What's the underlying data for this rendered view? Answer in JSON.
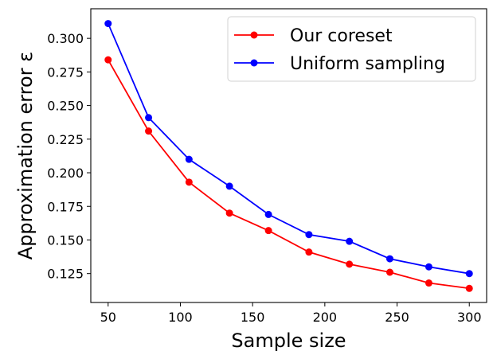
{
  "chart_data": {
    "type": "line",
    "title": "",
    "xlabel": "Sample size",
    "ylabel": "Approximation error ε",
    "x": [
      50,
      78,
      106,
      134,
      161,
      189,
      217,
      245,
      272,
      300
    ],
    "xlim": [
      38,
      312
    ],
    "ylim": [
      0.1035,
      0.322
    ],
    "xticks": [
      {
        "value": 50,
        "label": "50"
      },
      {
        "value": 100,
        "label": "100"
      },
      {
        "value": 150,
        "label": "150"
      },
      {
        "value": 200,
        "label": "200"
      },
      {
        "value": 250,
        "label": "250"
      },
      {
        "value": 300,
        "label": "300"
      }
    ],
    "yticks": [
      {
        "value": 0.125,
        "label": "0.125"
      },
      {
        "value": 0.15,
        "label": "0.150"
      },
      {
        "value": 0.175,
        "label": "0.175"
      },
      {
        "value": 0.2,
        "label": "0.200"
      },
      {
        "value": 0.225,
        "label": "0.225"
      },
      {
        "value": 0.25,
        "label": "0.250"
      },
      {
        "value": 0.275,
        "label": "0.275"
      },
      {
        "value": 0.3,
        "label": "0.300"
      }
    ],
    "grid": false,
    "legend_position": "top-right",
    "series": [
      {
        "name": "Our coreset",
        "color": "#ff0000",
        "marker": "circle",
        "values": [
          0.284,
          0.231,
          0.193,
          0.17,
          0.157,
          0.141,
          0.132,
          0.126,
          0.118,
          0.114
        ]
      },
      {
        "name": "Uniform sampling",
        "color": "#0000ff",
        "marker": "circle",
        "values": [
          0.311,
          0.241,
          0.21,
          0.19,
          0.169,
          0.154,
          0.149,
          0.136,
          0.13,
          0.125
        ]
      }
    ]
  }
}
